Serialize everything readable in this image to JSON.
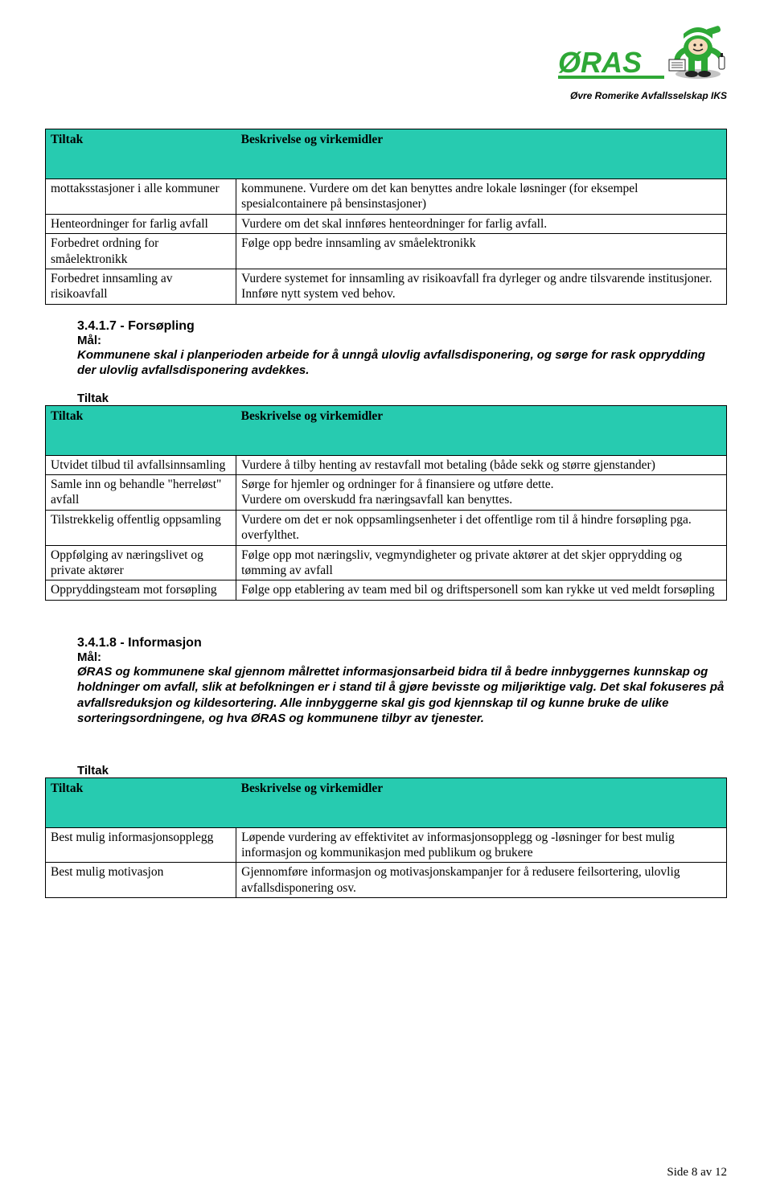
{
  "logo": {
    "brand": "ØRAS",
    "caption": "Øvre Romerike Avfallsselskap IKS",
    "green": "#2ea836",
    "dark": "#222222"
  },
  "colors": {
    "header_bg": "#27cbb0",
    "border": "#000000",
    "text": "#000000"
  },
  "table_header": {
    "col1": "Tiltak",
    "col2": "Beskrivelse og virkemidler"
  },
  "table1": {
    "rows": [
      {
        "c1": "mottaksstasjoner i alle kommuner",
        "c2": "kommunene. Vurdere om det kan benyttes andre lokale løsninger (for eksempel spesialcontainere på bensinstasjoner)"
      },
      {
        "c1": "Henteordninger for farlig avfall",
        "c2": "Vurdere om det skal innføres henteordninger for farlig avfall."
      },
      {
        "c1": "Forbedret ordning for småelektronikk",
        "c2": "Følge opp bedre innsamling av småelektronikk"
      },
      {
        "c1": "Forbedret innsamling av risikoavfall",
        "c2": "Vurdere systemet for innsamling av risikoavfall fra dyrleger og andre tilsvarende institusjoner.\nInnføre nytt system ved behov."
      }
    ]
  },
  "section_3417": {
    "heading": "3.4.1.7 - Forsøpling",
    "mal": "Mål:",
    "body": "Kommunene skal i planperioden arbeide for å unngå ulovlig avfallsdisponering, og sørge for rask opprydding der ulovlig avfallsdisponering avdekkes."
  },
  "tiltak_label": "Tiltak",
  "table2": {
    "rows": [
      {
        "c1": "Utvidet tilbud til avfallsinnsamling",
        "c2": "Vurdere å tilby henting av restavfall mot betaling (både sekk og større gjenstander)"
      },
      {
        "c1": "Samle inn og behandle \"herreløst\" avfall",
        "c2": "Sørge for hjemler og ordninger for å finansiere og utføre dette.\nVurdere om overskudd fra næringsavfall kan benyttes."
      },
      {
        "c1": "Tilstrekkelig offentlig oppsamling",
        "c2": "Vurdere om det er nok oppsamlingsenheter i det offentlige rom til å hindre forsøpling pga. overfylthet."
      },
      {
        "c1": "Oppfølging av næringslivet og private aktører",
        "c2": "Følge opp mot næringsliv, vegmyndigheter og private aktører at det skjer opprydding og tømming av avfall"
      },
      {
        "c1": "Oppryddingsteam mot forsøpling",
        "c2": "Følge opp etablering av  team med bil og driftspersonell som kan rykke ut ved meldt forsøpling"
      }
    ]
  },
  "section_3418": {
    "heading": "3.4.1.8 - Informasjon",
    "mal": "Mål:",
    "body": "ØRAS og kommunene skal gjennom målrettet informasjonsarbeid bidra til å bedre innbyggernes kunnskap og holdninger om avfall, slik at befolkningen er i stand til å gjøre bevisste og miljøriktige valg. Det skal fokuseres på avfallsreduksjon og kildesortering. Alle innbyggerne skal gis god kjennskap til og kunne bruke de ulike sorteringsordningene, og hva ØRAS og kommunene tilbyr av tjenester."
  },
  "table3": {
    "rows": [
      {
        "c1": "Best mulig informasjonsopplegg",
        "c2": "Løpende vurdering av effektivitet av informasjonsopplegg og -løsninger for best mulig informasjon og kommunikasjon med publikum og brukere"
      },
      {
        "c1": "Best mulig motivasjon",
        "c2": "Gjennomføre informasjon og motivasjonskampanjer for å redusere feilsortering, ulovlig avfallsdisponering osv."
      }
    ]
  },
  "footer": "Side 8 av 12"
}
